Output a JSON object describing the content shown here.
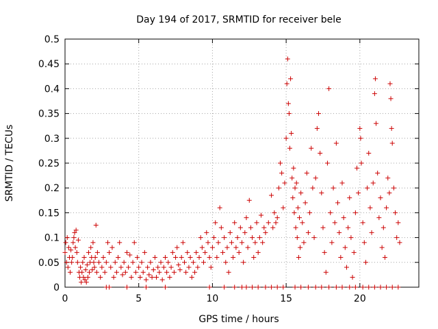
{
  "chart_data": {
    "type": "scatter",
    "title": "Day 194 of 2017, SRMTID for receiver bele",
    "xlabel": "GPS time / hours",
    "ylabel": "SRMTID / TECUs",
    "xlim": [
      0,
      24
    ],
    "ylim": [
      0,
      0.5
    ],
    "xticks": [
      0,
      5,
      10,
      15,
      20
    ],
    "xtick_labels": [
      "0",
      "5",
      "10",
      "15",
      "20"
    ],
    "yticks": [
      0,
      0.05,
      0.1,
      0.15,
      0.2,
      0.25,
      0.3,
      0.35,
      0.4,
      0.45,
      0.5
    ],
    "ytick_labels": [
      "0",
      "0.05",
      "0.1",
      "0.15",
      "0.2",
      "0.25",
      "0.3",
      "0.35",
      "0.4",
      "0.45",
      "0.5"
    ],
    "grid": true,
    "series": [
      {
        "name": "SRMTID",
        "marker": "+",
        "color": "#cc0000",
        "points": [
          [
            0.0,
            0.07
          ],
          [
            0.05,
            0.09
          ],
          [
            0.1,
            0.05
          ],
          [
            0.15,
            0.1
          ],
          [
            0.2,
            0.04
          ],
          [
            0.25,
            0.08
          ],
          [
            0.3,
            0.06
          ],
          [
            0.35,
            0.03
          ],
          [
            0.4,
            0.075
          ],
          [
            0.45,
            0.05
          ],
          [
            0.5,
            0.06
          ],
          [
            0.55,
            0.09
          ],
          [
            0.6,
            0.1
          ],
          [
            0.65,
            0.11
          ],
          [
            0.7,
            0.08
          ],
          [
            0.75,
            0.115
          ],
          [
            0.8,
            0.07
          ],
          [
            0.85,
            0.05
          ],
          [
            0.9,
            0.095
          ],
          [
            0.95,
            0.03
          ],
          [
            1.0,
            0.02
          ],
          [
            1.05,
            0.04
          ],
          [
            1.1,
            0.01
          ],
          [
            1.15,
            0.03
          ],
          [
            1.2,
            0.05
          ],
          [
            1.25,
            0.02
          ],
          [
            1.3,
            0.06
          ],
          [
            1.35,
            0.015
          ],
          [
            1.4,
            0.035
          ],
          [
            1.45,
            0.01
          ],
          [
            1.5,
            0.045
          ],
          [
            1.55,
            0.02
          ],
          [
            1.6,
            0.07
          ],
          [
            1.65,
            0.03
          ],
          [
            1.7,
            0.05
          ],
          [
            1.75,
            0.08
          ],
          [
            1.8,
            0.06
          ],
          [
            1.85,
            0.035
          ],
          [
            1.9,
            0.09
          ],
          [
            1.95,
            0.05
          ],
          [
            2.0,
            0.04
          ],
          [
            2.05,
            0.06
          ],
          [
            2.1,
            0.125
          ],
          [
            2.15,
            0.03
          ],
          [
            2.2,
            0.07
          ],
          [
            2.3,
            0.05
          ],
          [
            2.4,
            0.02
          ],
          [
            2.5,
            0.04
          ],
          [
            2.6,
            0.06
          ],
          [
            2.7,
            0.03
          ],
          [
            2.8,
            0.05
          ],
          [
            2.9,
            0.09
          ],
          [
            3.0,
            0.07
          ],
          [
            3.1,
            0.04
          ],
          [
            3.2,
            0.08
          ],
          [
            3.3,
            0.02
          ],
          [
            3.4,
            0.05
          ],
          [
            3.5,
            0.03
          ],
          [
            3.6,
            0.06
          ],
          [
            3.7,
            0.09
          ],
          [
            3.8,
            0.04
          ],
          [
            3.9,
            0.025
          ],
          [
            4.0,
            0.05
          ],
          [
            4.1,
            0.03
          ],
          [
            4.2,
            0.07
          ],
          [
            4.3,
            0.04
          ],
          [
            4.4,
            0.065
          ],
          [
            4.5,
            0.02
          ],
          [
            4.6,
            0.05
          ],
          [
            4.7,
            0.09
          ],
          [
            4.8,
            0.03
          ],
          [
            4.9,
            0.06
          ],
          [
            5.0,
            0.04
          ],
          [
            5.1,
            0.02
          ],
          [
            5.2,
            0.05
          ],
          [
            5.3,
            0.03
          ],
          [
            5.4,
            0.07
          ],
          [
            5.5,
            0.015
          ],
          [
            5.6,
            0.04
          ],
          [
            5.7,
            0.025
          ],
          [
            5.8,
            0.05
          ],
          [
            5.9,
            0.02
          ],
          [
            6.0,
            0.035
          ],
          [
            6.1,
            0.06
          ],
          [
            6.2,
            0.02
          ],
          [
            6.3,
            0.04
          ],
          [
            6.4,
            0.03
          ],
          [
            6.5,
            0.05
          ],
          [
            6.6,
            0.015
          ],
          [
            6.7,
            0.04
          ],
          [
            6.8,
            0.06
          ],
          [
            6.9,
            0.03
          ],
          [
            7.0,
            0.05
          ],
          [
            7.1,
            0.02
          ],
          [
            7.2,
            0.04
          ],
          [
            7.3,
            0.07
          ],
          [
            7.4,
            0.03
          ],
          [
            7.5,
            0.06
          ],
          [
            7.6,
            0.08
          ],
          [
            7.7,
            0.045
          ],
          [
            7.8,
            0.035
          ],
          [
            7.9,
            0.06
          ],
          [
            8.0,
            0.09
          ],
          [
            8.1,
            0.05
          ],
          [
            8.2,
            0.03
          ],
          [
            8.3,
            0.07
          ],
          [
            8.4,
            0.04
          ],
          [
            8.5,
            0.06
          ],
          [
            8.6,
            0.02
          ],
          [
            8.7,
            0.05
          ],
          [
            8.8,
            0.03
          ],
          [
            8.9,
            0.07
          ],
          [
            9.0,
            0.04
          ],
          [
            9.1,
            0.06
          ],
          [
            9.2,
            0.1
          ],
          [
            9.3,
            0.08
          ],
          [
            9.4,
            0.05
          ],
          [
            9.5,
            0.07
          ],
          [
            9.6,
            0.11
          ],
          [
            9.7,
            0.09
          ],
          [
            9.8,
            0.06
          ],
          [
            9.9,
            0.04
          ],
          [
            10.0,
            0.08
          ],
          [
            10.1,
            0.1
          ],
          [
            10.2,
            0.13
          ],
          [
            10.3,
            0.06
          ],
          [
            10.4,
            0.09
          ],
          [
            10.5,
            0.16
          ],
          [
            10.6,
            0.12
          ],
          [
            10.7,
            0.07
          ],
          [
            10.8,
            0.1
          ],
          [
            10.9,
            0.05
          ],
          [
            11.0,
            0.08
          ],
          [
            11.1,
            0.03
          ],
          [
            11.2,
            0.11
          ],
          [
            11.3,
            0.09
          ],
          [
            11.4,
            0.06
          ],
          [
            11.5,
            0.13
          ],
          [
            11.6,
            0.08
          ],
          [
            11.7,
            0.1
          ],
          [
            11.8,
            0.07
          ],
          [
            11.9,
            0.12
          ],
          [
            12.0,
            0.09
          ],
          [
            12.1,
            0.05
          ],
          [
            12.2,
            0.11
          ],
          [
            12.3,
            0.14
          ],
          [
            12.4,
            0.08
          ],
          [
            12.5,
            0.175
          ],
          [
            12.6,
            0.12
          ],
          [
            12.7,
            0.1
          ],
          [
            12.8,
            0.06
          ],
          [
            12.9,
            0.09
          ],
          [
            13.0,
            0.13
          ],
          [
            13.1,
            0.07
          ],
          [
            13.2,
            0.1
          ],
          [
            13.3,
            0.145
          ],
          [
            13.4,
            0.09
          ],
          [
            13.5,
            0.12
          ],
          [
            13.6,
            0.11
          ],
          [
            13.8,
            0.13
          ],
          [
            14.0,
            0.185
          ],
          [
            14.1,
            0.12
          ],
          [
            14.2,
            0.15
          ],
          [
            14.3,
            0.13
          ],
          [
            14.4,
            0.14
          ],
          [
            14.5,
            0.2
          ],
          [
            14.6,
            0.25
          ],
          [
            14.7,
            0.23
          ],
          [
            14.8,
            0.16
          ],
          [
            14.9,
            0.21
          ],
          [
            15.0,
            0.3
          ],
          [
            15.05,
            0.41
          ],
          [
            15.1,
            0.46
          ],
          [
            15.15,
            0.37
          ],
          [
            15.2,
            0.35
          ],
          [
            15.25,
            0.28
          ],
          [
            15.3,
            0.42
          ],
          [
            15.35,
            0.31
          ],
          [
            15.4,
            0.22
          ],
          [
            15.45,
            0.18
          ],
          [
            15.5,
            0.24
          ],
          [
            15.55,
            0.15
          ],
          [
            15.6,
            0.2
          ],
          [
            15.65,
            0.12
          ],
          [
            15.7,
            0.21
          ],
          [
            15.75,
            0.1
          ],
          [
            15.8,
            0.16
          ],
          [
            15.85,
            0.06
          ],
          [
            15.9,
            0.14
          ],
          [
            15.95,
            0.08
          ],
          [
            16.0,
            0.19
          ],
          [
            16.1,
            0.13
          ],
          [
            16.2,
            0.09
          ],
          [
            16.3,
            0.17
          ],
          [
            16.4,
            0.23
          ],
          [
            16.5,
            0.11
          ],
          [
            16.6,
            0.15
          ],
          [
            16.7,
            0.28
          ],
          [
            16.8,
            0.2
          ],
          [
            16.9,
            0.1
          ],
          [
            17.0,
            0.22
          ],
          [
            17.1,
            0.32
          ],
          [
            17.2,
            0.35
          ],
          [
            17.3,
            0.27
          ],
          [
            17.4,
            0.19
          ],
          [
            17.5,
            0.12
          ],
          [
            17.6,
            0.07
          ],
          [
            17.7,
            0.03
          ],
          [
            17.8,
            0.25
          ],
          [
            17.9,
            0.4
          ],
          [
            18.0,
            0.15
          ],
          [
            18.1,
            0.09
          ],
          [
            18.2,
            0.2
          ],
          [
            18.3,
            0.13
          ],
          [
            18.4,
            0.29
          ],
          [
            18.5,
            0.17
          ],
          [
            18.6,
            0.11
          ],
          [
            18.7,
            0.06
          ],
          [
            18.8,
            0.21
          ],
          [
            18.9,
            0.14
          ],
          [
            19.0,
            0.08
          ],
          [
            19.1,
            0.04
          ],
          [
            19.2,
            0.12
          ],
          [
            19.3,
            0.18
          ],
          [
            19.4,
            0.1
          ],
          [
            19.5,
            0.02
          ],
          [
            19.6,
            0.07
          ],
          [
            19.7,
            0.15
          ],
          [
            19.8,
            0.24
          ],
          [
            19.9,
            0.19
          ],
          [
            20.0,
            0.32
          ],
          [
            20.05,
            0.3
          ],
          [
            20.1,
            0.25
          ],
          [
            20.2,
            0.13
          ],
          [
            20.3,
            0.09
          ],
          [
            20.4,
            0.05
          ],
          [
            20.5,
            0.2
          ],
          [
            20.6,
            0.27
          ],
          [
            20.7,
            0.16
          ],
          [
            20.8,
            0.11
          ],
          [
            20.9,
            0.21
          ],
          [
            21.0,
            0.39
          ],
          [
            21.05,
            0.42
          ],
          [
            21.1,
            0.33
          ],
          [
            21.2,
            0.23
          ],
          [
            21.3,
            0.14
          ],
          [
            21.4,
            0.18
          ],
          [
            21.5,
            0.08
          ],
          [
            21.6,
            0.12
          ],
          [
            21.7,
            0.06
          ],
          [
            21.8,
            0.16
          ],
          [
            21.9,
            0.22
          ],
          [
            22.0,
            0.19
          ],
          [
            22.05,
            0.41
          ],
          [
            22.1,
            0.38
          ],
          [
            22.15,
            0.32
          ],
          [
            22.2,
            0.29
          ],
          [
            22.3,
            0.2
          ],
          [
            22.4,
            0.15
          ],
          [
            22.5,
            0.1
          ],
          [
            22.6,
            0.13
          ],
          [
            22.7,
            0.09
          ],
          [
            2.8,
            0.0
          ],
          [
            3.0,
            0.0
          ],
          [
            4.2,
            0.0
          ],
          [
            5.5,
            0.0
          ],
          [
            6.8,
            0.0
          ],
          [
            9.8,
            0.0
          ],
          [
            10.8,
            0.0
          ],
          [
            11.5,
            0.0
          ],
          [
            12.0,
            0.0
          ],
          [
            12.3,
            0.0
          ],
          [
            12.7,
            0.0
          ],
          [
            13.1,
            0.0
          ],
          [
            13.6,
            0.0
          ],
          [
            14.0,
            0.0
          ],
          [
            14.4,
            0.0
          ],
          [
            14.8,
            0.0
          ],
          [
            15.6,
            0.0
          ],
          [
            16.0,
            0.0
          ],
          [
            16.5,
            0.0
          ],
          [
            17.0,
            0.0
          ],
          [
            17.4,
            0.0
          ],
          [
            17.9,
            0.0
          ],
          [
            18.4,
            0.0
          ],
          [
            18.8,
            0.0
          ],
          [
            19.3,
            0.0
          ],
          [
            19.7,
            0.0
          ],
          [
            20.2,
            0.0
          ],
          [
            20.6,
            0.0
          ],
          [
            21.0,
            0.0
          ],
          [
            21.4,
            0.0
          ],
          [
            21.8,
            0.0
          ],
          [
            22.2,
            0.0
          ],
          [
            22.6,
            0.0
          ]
        ]
      }
    ]
  }
}
